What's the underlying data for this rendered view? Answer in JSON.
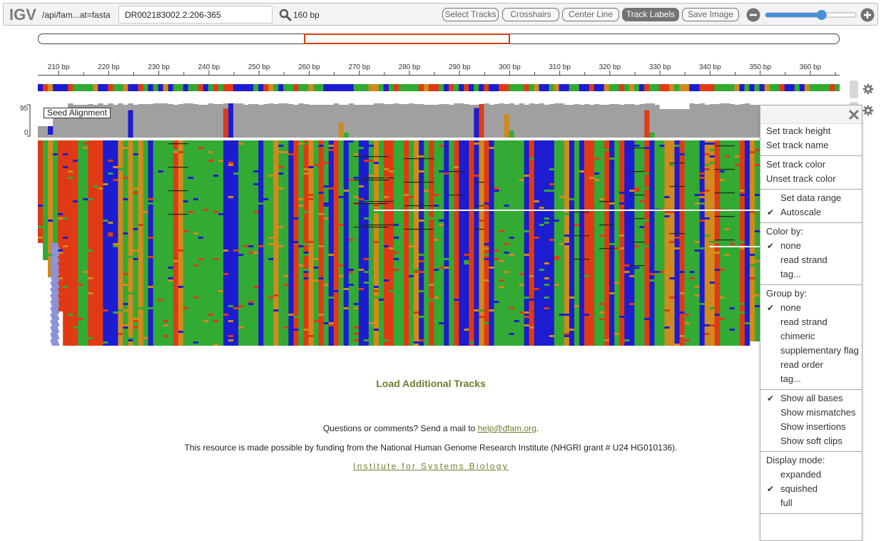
{
  "navbar": {
    "logo": "IGV",
    "genome_label": "/api/fam...at=fasta",
    "locus": "DR002183002.2:206-365",
    "window_size": "160 bp",
    "buttons": [
      "Select Tracks",
      "Crosshairs",
      "Center Line",
      "Track Labels",
      "Save Image"
    ],
    "active_button": "Track Labels",
    "zoom_level": 0.62
  },
  "ruler": {
    "ticks": [
      "210 bp",
      "220 bp",
      "230 bp",
      "240 bp",
      "250 bp",
      "260 bp",
      "270 bp",
      "280 bp",
      "290 bp",
      "300 bp",
      "310 bp",
      "320 bp",
      "330 bp",
      "340 bp",
      "350 bp",
      "360 bp"
    ]
  },
  "coverage": {
    "max_label": "95",
    "min_label": "0",
    "track_name": "Seed Alignment"
  },
  "colors": {
    "A": "#33aa33",
    "C": "#1c1cd0",
    "G": "#d18a1c",
    "T": "#e03a14",
    "match": "#a0a0a0",
    "accent": "#6b7f2e"
  },
  "footer": {
    "load_tracks": "Load Additional Tracks",
    "contact_prefix": "Questions or comments? Send a mail to ",
    "contact_email": "help@dfam.org",
    "contact_suffix": ".",
    "funding": "This resource is made possible by funding from the National Human Genome Research Institute (NHGRI grant # U24 HG010136).",
    "isb": "Institute for Systems Biology"
  },
  "menu": {
    "sections": [
      {
        "items": [
          {
            "label": "Set track height"
          },
          {
            "label": "Set track name"
          }
        ]
      },
      {
        "items": [
          {
            "label": "Set track color"
          },
          {
            "label": "Unset track color"
          }
        ]
      },
      {
        "items": [
          {
            "label": "Set data range"
          },
          {
            "label": "Autoscale",
            "check": true
          }
        ]
      },
      {
        "header": "Color by:",
        "items": [
          {
            "label": "none",
            "check": true
          },
          {
            "label": "read strand"
          },
          {
            "label": "tag..."
          }
        ]
      },
      {
        "header": "Group by:",
        "items": [
          {
            "label": "none",
            "check": true
          },
          {
            "label": "read strand"
          },
          {
            "label": "chimeric"
          },
          {
            "label": "supplementary flag"
          },
          {
            "label": "read order"
          },
          {
            "label": "tag..."
          }
        ]
      },
      {
        "items": [
          {
            "label": "Show all bases",
            "check": true
          },
          {
            "label": "Show mismatches"
          },
          {
            "label": "Show insertions"
          },
          {
            "label": "Show soft clips"
          }
        ]
      },
      {
        "header": "Display mode:",
        "items": [
          {
            "label": "expanded"
          },
          {
            "label": "squished",
            "check": true
          },
          {
            "label": "full"
          }
        ]
      }
    ]
  }
}
